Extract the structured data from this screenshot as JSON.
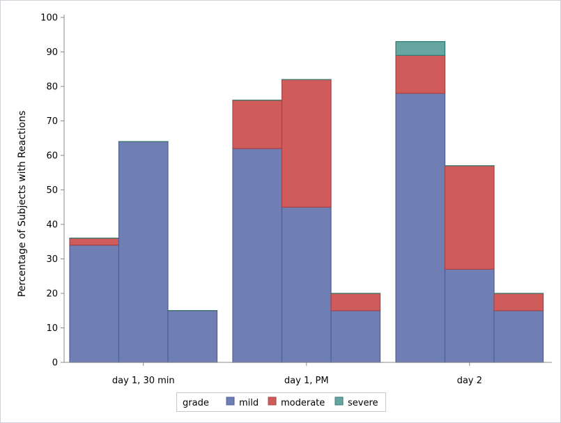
{
  "chart_data": {
    "type": "bar",
    "stacked": true,
    "ylabel": "Percentage of Subjects with Reactions",
    "xlabel": "",
    "ylim": [
      0,
      100
    ],
    "yticks": [
      0,
      10,
      20,
      30,
      40,
      50,
      60,
      70,
      80,
      90,
      100
    ],
    "grid": false,
    "categories": [
      "day 1, 30 min",
      "day 1, PM",
      "day 2"
    ],
    "bars_per_category": 3,
    "legend": {
      "title": "grade",
      "placement": "bottom"
    },
    "series": [
      {
        "name": "mild",
        "color": "#6f7eb3",
        "edge": "#4f5f9a",
        "values": [
          [
            34,
            64,
            15
          ],
          [
            62,
            45,
            15
          ],
          [
            78,
            27,
            15
          ]
        ]
      },
      {
        "name": "moderate",
        "color": "#d05b5b",
        "edge": "#a84444",
        "values": [
          [
            2,
            0,
            0
          ],
          [
            14,
            37,
            5
          ],
          [
            11,
            30,
            5
          ]
        ]
      },
      {
        "name": "severe",
        "color": "#66a5a0",
        "edge": "#2e7a72",
        "values": [
          [
            0,
            0,
            0
          ],
          [
            0,
            0,
            0
          ],
          [
            4,
            0,
            0
          ]
        ]
      }
    ]
  }
}
